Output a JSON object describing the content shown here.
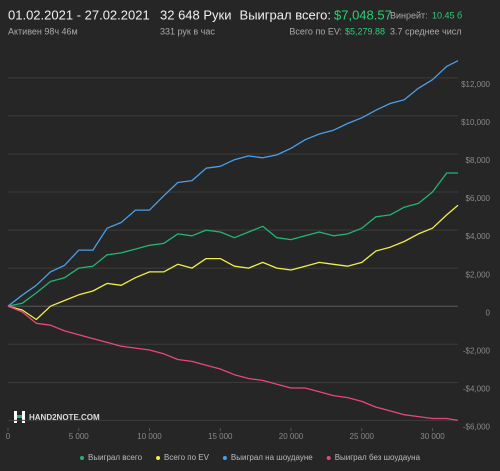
{
  "header": {
    "date_range": "01.02.2021 - 27.02.2021",
    "active": "Активен 98ч 46м",
    "hands": "32 648 Руки",
    "hands_per_hour": "331 рук в час",
    "won_label": "Выиграл всего:",
    "won_value": "$7,048.57",
    "ev_label": "Всего по EV:",
    "ev_value": "$5,279.88",
    "winrate_label": "Винрейт:",
    "winrate_value": "10.45 б",
    "avg_tables": "3.7 среднее числ"
  },
  "watermark": "HAND2NOTE.COM",
  "chart_data": {
    "type": "line",
    "x": [
      0,
      1000,
      2000,
      3000,
      4000,
      5000,
      6000,
      7000,
      8000,
      9000,
      10000,
      11000,
      12000,
      13000,
      14000,
      15000,
      16000,
      17000,
      18000,
      19000,
      20000,
      21000,
      22000,
      23000,
      24000,
      25000,
      26000,
      27000,
      28000,
      29000,
      30000,
      31000,
      31800
    ],
    "xlim": [
      0,
      31800
    ],
    "xticks": [
      0,
      {
        "value": 5000,
        "label": "5 000"
      },
      {
        "value": 10000,
        "label": "10 000"
      },
      {
        "value": 15000,
        "label": "15 000"
      },
      {
        "value": 20000,
        "label": "20 000"
      },
      {
        "value": 25000,
        "label": "25 000"
      },
      {
        "value": 30000,
        "label": "30 000"
      }
    ],
    "ylim": [
      -6400,
      13200
    ],
    "yticks": [
      {
        "value": -6000,
        "label": "-$6,000"
      },
      {
        "value": -4000,
        "label": "-$4,000"
      },
      {
        "value": -2000,
        "label": "-$2,000"
      },
      0,
      {
        "value": 2000,
        "label": "$2,000"
      },
      {
        "value": 4000,
        "label": "$4,000"
      },
      {
        "value": 6000,
        "label": "$6,000"
      },
      {
        "value": 8000,
        "label": "$8,000"
      },
      {
        "value": 10000,
        "label": "$10,000"
      },
      {
        "value": 12000,
        "label": "$12,000"
      }
    ],
    "grid": true,
    "series": [
      {
        "name": "Выиграл всего",
        "color": "#22b573",
        "values": [
          0,
          150,
          700,
          1300,
          1500,
          2000,
          2100,
          2700,
          2800,
          3000,
          3200,
          3300,
          3800,
          3700,
          4000,
          3900,
          3600,
          3900,
          4200,
          3600,
          3500,
          3700,
          3900,
          3700,
          3800,
          4100,
          4700,
          4800,
          5200,
          5400,
          6000,
          7000,
          7000
        ]
      },
      {
        "name": "Всего по EV",
        "color": "#f2ee4a",
        "values": [
          0,
          -200,
          -700,
          0,
          300,
          600,
          800,
          1200,
          1100,
          1500,
          1800,
          1800,
          2200,
          2000,
          2500,
          2500,
          2100,
          2000,
          2300,
          2000,
          1900,
          2100,
          2300,
          2200,
          2100,
          2300,
          2900,
          3100,
          3400,
          3800,
          4100,
          4800,
          5300
        ]
      },
      {
        "name": "Выиграл на шоудауне",
        "color": "#4a9fe8",
        "values": [
          0,
          580,
          1100,
          1800,
          2150,
          2950,
          2950,
          4100,
          4400,
          5050,
          5050,
          5800,
          6500,
          6600,
          7250,
          7350,
          7700,
          7900,
          7800,
          7950,
          8300,
          8750,
          9050,
          9250,
          9600,
          9900,
          10300,
          10650,
          10850,
          11450,
          11900,
          12600,
          12900
        ]
      },
      {
        "name": "Выиграл без шоудауна",
        "color": "#e8467c",
        "values": [
          0,
          -300,
          -900,
          -1000,
          -1300,
          -1500,
          -1700,
          -1900,
          -2100,
          -2200,
          -2300,
          -2500,
          -2800,
          -2900,
          -3100,
          -3300,
          -3600,
          -3800,
          -3900,
          -4100,
          -4300,
          -4300,
          -4500,
          -4700,
          -4800,
          -5000,
          -5300,
          -5500,
          -5700,
          -5800,
          -5900,
          -5900,
          -6000
        ]
      }
    ]
  }
}
